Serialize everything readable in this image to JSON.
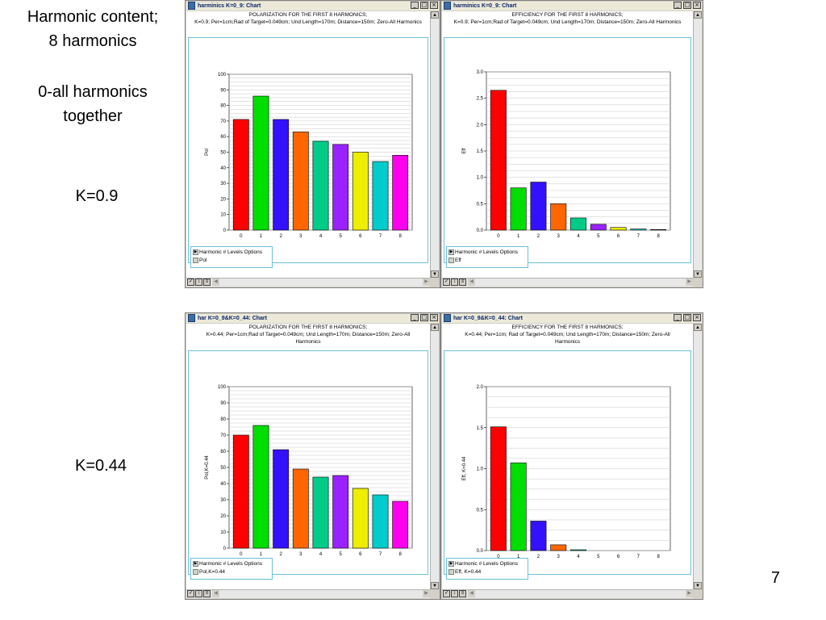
{
  "side": {
    "line1": "Harmonic content;",
    "line2": "8 harmonics",
    "line3": "0-all harmonics",
    "line4": "together",
    "k1": "K=0.9",
    "k2": "K=0.44"
  },
  "page_number": "7",
  "legend_options": "Harmonic # Levels Options",
  "windows": [
    {
      "title": "harminics K=0_9: Chart",
      "header1": "POLARIZATION FOR THE FIRST 8 HARMONICS;",
      "header2": "K=0.9; Per=1cm;Rad of Target=0.049cm; Und Length=170m; Distance=150m; Zero-All Harmonics",
      "header3": "",
      "legend_series": "Pol"
    },
    {
      "title": "harminics K=0_9: Chart",
      "header1": "EFFICIENCY FOR THE FIRST 8 HARMONICS;",
      "header2": "K=0.9; Per=1cm;Rad of Target=0.049cm; Und Length=170m; Distance=150m; Zero-All Harmonics",
      "header3": "",
      "legend_series": "Eff"
    },
    {
      "title": "har K=0_9&K=0_44: Chart",
      "header1": "POLARIZATION  FOR THE FIRST 8 HARMONICS;",
      "header2": "K=0.44; Per=1cm;Rad of Target=0.049cm; Und Length=170m; Distance=150m; Zero-All",
      "header3": "Harmonics",
      "legend_series": "Pol,K=0.44"
    },
    {
      "title": "har K=0_9&K=0_44: Chart",
      "header1": "EFFICIENCY FOR THE FIRST 8 HARMONICS;",
      "header2": "K=0.44; Per=1cm; Rad of Target=0.049cm; Und Length=170m; Distance=150m; Zero-All",
      "header3": "Harmonics",
      "legend_series": "Eff, K=0.44"
    }
  ],
  "chart_data": [
    {
      "type": "bar",
      "categories": [
        "0",
        "1",
        "2",
        "3",
        "4",
        "5",
        "6",
        "7",
        "8"
      ],
      "values": [
        71,
        86,
        71,
        63,
        57,
        55,
        50,
        44,
        48
      ],
      "ylabel": "Pol",
      "ylim": [
        0,
        100
      ],
      "yticks": [
        0,
        10,
        20,
        30,
        40,
        50,
        60,
        70,
        80,
        90,
        100
      ],
      "grid": true
    },
    {
      "type": "bar",
      "categories": [
        "0",
        "1",
        "2",
        "3",
        "4",
        "5",
        "6",
        "7",
        "8"
      ],
      "values": [
        2.65,
        0.8,
        0.91,
        0.5,
        0.23,
        0.11,
        0.05,
        0.02,
        0.01
      ],
      "ylabel": "Eff",
      "ylim": [
        0,
        3.0
      ],
      "yticks": [
        0.0,
        0.5,
        1.0,
        1.5,
        2.0,
        2.5,
        3.0
      ],
      "grid": true
    },
    {
      "type": "bar",
      "categories": [
        "0",
        "1",
        "2",
        "3",
        "4",
        "5",
        "6",
        "7",
        "8"
      ],
      "values": [
        70,
        76,
        61,
        49,
        44,
        45,
        37,
        33,
        29
      ],
      "ylabel": "Pol,K=0.44",
      "ylim": [
        0,
        100
      ],
      "yticks": [
        0,
        10,
        20,
        30,
        40,
        50,
        60,
        70,
        80,
        90,
        100
      ],
      "grid": true
    },
    {
      "type": "bar",
      "categories": [
        "0",
        "1",
        "2",
        "3",
        "4",
        "5",
        "6",
        "7",
        "8"
      ],
      "values": [
        1.51,
        1.07,
        0.36,
        0.07,
        0.01,
        0,
        0,
        0,
        0
      ],
      "ylabel": "Eff, K=0.44",
      "ylim": [
        0,
        2.0
      ],
      "yticks": [
        0.0,
        0.5,
        1.0,
        1.5,
        2.0
      ],
      "grid": true
    }
  ],
  "bar_colors": [
    "#ff0000",
    "#00dd00",
    "#3311ff",
    "#ff6600",
    "#00cc88",
    "#9922ff",
    "#eeee00",
    "#00cccc",
    "#ff00ee"
  ]
}
